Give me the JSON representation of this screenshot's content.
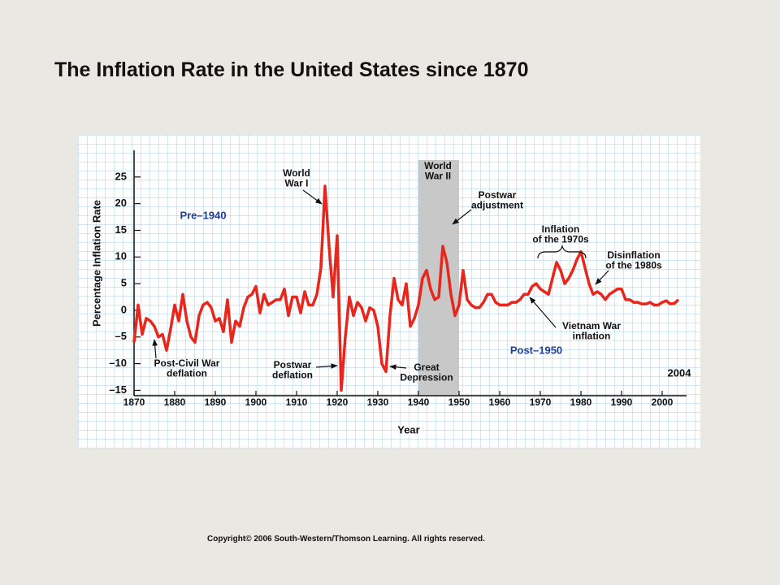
{
  "title": "The Inflation Rate in the United States since 1870",
  "copyright": "Copyright© 2006 South-Western/Thomson Learning. All rights reserved.",
  "chart_data": {
    "type": "line",
    "xlabel": "Year",
    "ylabel": "Percentage Inflation Rate",
    "x": [
      1870,
      1871,
      1872,
      1873,
      1874,
      1875,
      1876,
      1877,
      1878,
      1879,
      1880,
      1881,
      1882,
      1883,
      1884,
      1885,
      1886,
      1887,
      1888,
      1889,
      1890,
      1891,
      1892,
      1893,
      1894,
      1895,
      1896,
      1897,
      1898,
      1899,
      1900,
      1901,
      1902,
      1903,
      1904,
      1905,
      1906,
      1907,
      1908,
      1909,
      1910,
      1911,
      1912,
      1913,
      1914,
      1915,
      1916,
      1917,
      1918,
      1919,
      1920,
      1921,
      1922,
      1923,
      1924,
      1925,
      1926,
      1927,
      1928,
      1929,
      1930,
      1931,
      1932,
      1933,
      1934,
      1935,
      1936,
      1937,
      1938,
      1939,
      1940,
      1941,
      1942,
      1943,
      1944,
      1945,
      1946,
      1947,
      1948,
      1949,
      1950,
      1951,
      1952,
      1953,
      1954,
      1955,
      1956,
      1957,
      1958,
      1959,
      1960,
      1961,
      1962,
      1963,
      1964,
      1965,
      1966,
      1967,
      1968,
      1969,
      1970,
      1971,
      1972,
      1973,
      1974,
      1975,
      1976,
      1977,
      1978,
      1979,
      1980,
      1981,
      1982,
      1983,
      1984,
      1985,
      1986,
      1987,
      1988,
      1989,
      1990,
      1991,
      1992,
      1993,
      1994,
      1995,
      1996,
      1997,
      1998,
      1999,
      2000,
      2001,
      2002,
      2003,
      2004
    ],
    "series": [
      {
        "color": "#e8261c",
        "values": [
          -6,
          1,
          -4.5,
          -1.5,
          -2,
          -3,
          -5,
          -4.5,
          -7.5,
          -3.5,
          1,
          -2,
          3,
          -2,
          -5,
          -6,
          -1,
          1,
          1.5,
          0.5,
          -2,
          -1.5,
          -4,
          2,
          -6,
          -2,
          -3,
          0.5,
          2.5,
          3,
          4.5,
          -0.5,
          3,
          1,
          1.5,
          2,
          2,
          4,
          -1,
          2.5,
          2.5,
          -0.5,
          3.5,
          1,
          1,
          3,
          8,
          23.3,
          12,
          2.5,
          14,
          -15,
          -5,
          2.5,
          -1,
          1.5,
          0.5,
          -2,
          0.5,
          0,
          -3,
          -10,
          -11.5,
          -1,
          6,
          2,
          1,
          5,
          -3,
          -1.5,
          1,
          6,
          7.5,
          4,
          2,
          2.5,
          12,
          9,
          3,
          -1,
          1,
          7.5,
          2,
          1,
          0.5,
          0.5,
          1.5,
          3,
          3,
          1.5,
          1,
          1,
          1,
          1.5,
          1.5,
          2,
          3,
          3,
          4.5,
          5,
          4,
          3.5,
          3,
          6,
          9,
          7.5,
          5,
          6,
          7.5,
          9.5,
          11,
          8,
          5,
          3,
          3.5,
          3,
          2,
          3,
          3.5,
          4,
          4,
          2,
          2,
          1.5,
          1.5,
          1.2,
          1.2,
          1.5,
          1,
          1,
          1.5,
          1.8,
          1.2,
          1.3,
          2
        ]
      }
    ],
    "xlim": [
      1870,
      2006
    ],
    "xticks": [
      1870,
      1880,
      1890,
      1900,
      1910,
      1920,
      1930,
      1940,
      1950,
      1960,
      1970,
      1980,
      1990,
      2000
    ],
    "ylim": [
      -16,
      30
    ],
    "yticks": [
      {
        "value": -15,
        "label": "–15"
      },
      {
        "value": -10,
        "label": "–10"
      },
      {
        "value": -5,
        "label": "–5"
      },
      0,
      5,
      10,
      15,
      20,
      25
    ],
    "shaded_region": {
      "x": [
        1940,
        1950
      ],
      "color": "#c8c8c8"
    },
    "annotations": [
      {
        "text": [
          "World",
          "War I"
        ],
        "color": "#111111"
      },
      {
        "text": [
          "Pre–1940"
        ],
        "color": "#1f3f9a"
      },
      {
        "text": [
          "World",
          "War II"
        ],
        "color": "#111111"
      },
      {
        "text": [
          "Postwar",
          "adjustment"
        ],
        "color": "#111111"
      },
      {
        "text": [
          "Inflation",
          "of the 1970s"
        ],
        "color": "#111111"
      },
      {
        "text": [
          "Disinflation",
          "of the 1980s"
        ],
        "color": "#111111"
      },
      {
        "text": [
          "Vietnam War",
          "inflation"
        ],
        "color": "#111111"
      },
      {
        "text": [
          "Post–1950"
        ],
        "color": "#1f3f9a"
      },
      {
        "text": [
          "Post-Civil War",
          "deflation"
        ],
        "color": "#111111"
      },
      {
        "text": [
          "Postwar",
          "deflation"
        ],
        "color": "#111111"
      },
      {
        "text": [
          "Great",
          "Depression"
        ],
        "color": "#111111"
      },
      {
        "text": [
          "2004"
        ],
        "color": "#111111"
      }
    ]
  }
}
